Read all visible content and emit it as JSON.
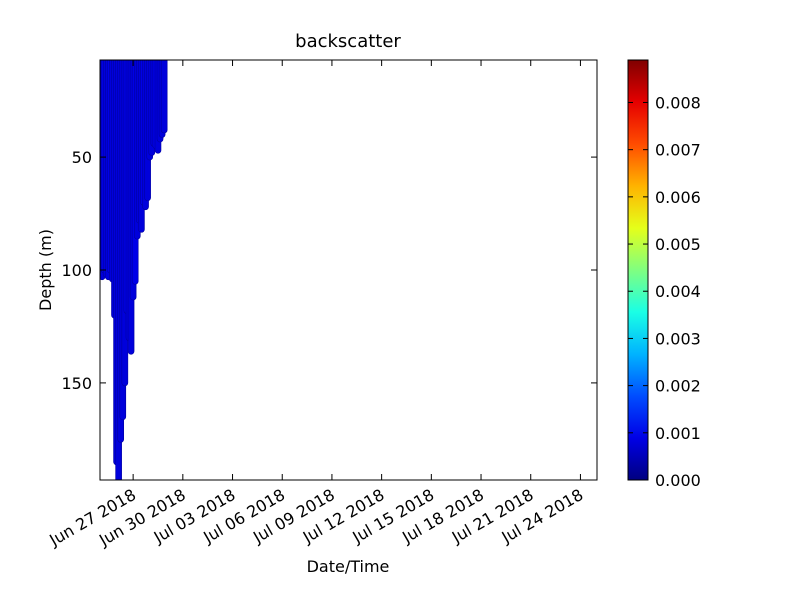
{
  "chart_data": {
    "type": "profile-scatter",
    "title": "backscatter",
    "xlabel": "Date/Time",
    "ylabel": "Depth (m)",
    "x": [
      "2018-06-25T00:00",
      "2018-06-25T03:00",
      "2018-06-25T06:00",
      "2018-06-25T09:00",
      "2018-06-25T12:00",
      "2018-06-25T15:00",
      "2018-06-25T18:00",
      "2018-06-25T21:00",
      "2018-06-26T00:00",
      "2018-06-26T03:00",
      "2018-06-26T06:00",
      "2018-06-26T09:00",
      "2018-06-26T12:00",
      "2018-06-26T15:00",
      "2018-06-26T18:00",
      "2018-06-26T21:00",
      "2018-06-27T00:00",
      "2018-06-27T03:00",
      "2018-06-27T06:00",
      "2018-06-27T09:00",
      "2018-06-27T12:00",
      "2018-06-27T15:00",
      "2018-06-27T18:00",
      "2018-06-27T21:00",
      "2018-06-28T00:00",
      "2018-06-28T03:00",
      "2018-06-28T06:00",
      "2018-06-28T09:00",
      "2018-06-28T12:00",
      "2018-06-28T15:00",
      "2018-06-28T18:00",
      "2018-06-28T21:00"
    ],
    "max_depth": [
      98,
      103,
      100,
      102,
      103,
      100,
      104,
      120,
      185,
      193,
      175,
      165,
      150,
      118,
      130,
      136,
      112,
      105,
      85,
      78,
      82,
      70,
      72,
      68,
      50,
      48,
      44,
      45,
      47,
      42,
      40,
      38
    ],
    "values": [
      0.0008,
      0.0008,
      0.0009,
      0.0008,
      0.0008,
      0.0009,
      0.0008,
      0.0008,
      0.0008,
      0.0008,
      0.0008,
      0.0008,
      0.0008,
      0.0009,
      0.0008,
      0.0008,
      0.0008,
      0.0009,
      0.0008,
      0.0008,
      0.0008,
      0.0009,
      0.0008,
      0.0008,
      0.0008,
      0.0008,
      0.0008,
      0.0009,
      0.0008,
      0.0008,
      0.0008,
      0.0008
    ],
    "xlim": [
      "2018-06-25",
      "2018-07-25"
    ],
    "xticks": [
      {
        "value": "2018-06-27",
        "label": "Jun 27 2018"
      },
      {
        "value": "2018-06-30",
        "label": "Jun 30 2018"
      },
      {
        "value": "2018-07-03",
        "label": "Jul 03 2018"
      },
      {
        "value": "2018-07-06",
        "label": "Jul 06 2018"
      },
      {
        "value": "2018-07-09",
        "label": "Jul 09 2018"
      },
      {
        "value": "2018-07-12",
        "label": "Jul 12 2018"
      },
      {
        "value": "2018-07-15",
        "label": "Jul 15 2018"
      },
      {
        "value": "2018-07-18",
        "label": "Jul 18 2018"
      },
      {
        "value": "2018-07-21",
        "label": "Jul 21 2018"
      },
      {
        "value": "2018-07-24",
        "label": "Jul 24 2018"
      }
    ],
    "ylim": [
      7,
      193
    ],
    "invert_y": true,
    "yticks": [
      50,
      100,
      150
    ],
    "colormap": "jet",
    "clim": [
      0,
      0.0089
    ],
    "cticks": [
      {
        "value": 0,
        "label": "0.000"
      },
      0.001,
      0.002,
      0.003,
      0.004,
      0.005,
      0.006,
      0.007,
      0.008
    ]
  }
}
